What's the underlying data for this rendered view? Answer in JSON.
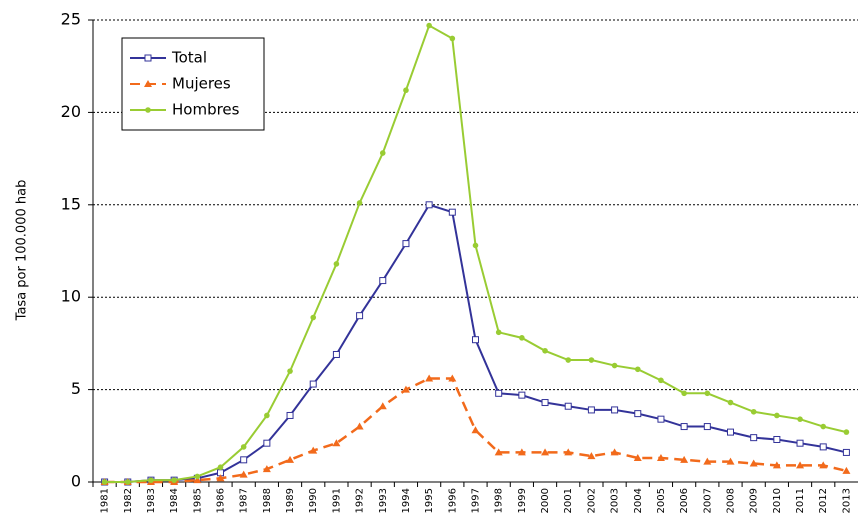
{
  "chart_data": {
    "type": "line",
    "y_label": "Tasa por 100.000 hab",
    "categories": [
      "1981",
      "1982",
      "1983",
      "1984",
      "1985",
      "1986",
      "1987",
      "1988",
      "1989",
      "1990",
      "1991",
      "1992",
      "1993",
      "1994",
      "1995",
      "1996",
      "1997",
      "1998",
      "1999",
      "2000",
      "2001",
      "2002",
      "2003",
      "2004",
      "2005",
      "2006",
      "2007",
      "2008",
      "2009",
      "2010",
      "2011",
      "2012",
      "2013"
    ],
    "series": [
      {
        "name": "Total",
        "color": "#333399",
        "marker": "square",
        "dash": false,
        "values": [
          0,
          0,
          0.1,
          0.1,
          0.2,
          0.5,
          1.2,
          2.1,
          3.6,
          5.3,
          6.9,
          9.0,
          10.9,
          12.9,
          15.0,
          14.6,
          7.7,
          4.8,
          4.7,
          4.3,
          4.1,
          3.9,
          3.9,
          3.7,
          3.4,
          3.0,
          3.0,
          2.7,
          2.4,
          2.3,
          2.1,
          1.9,
          1.6
        ]
      },
      {
        "name": "Mujeres",
        "color": "#f26a1b",
        "marker": "triangle",
        "dash": true,
        "values": [
          0,
          0,
          0,
          0,
          0.1,
          0.2,
          0.4,
          0.7,
          1.2,
          1.7,
          2.1,
          3.0,
          4.1,
          5.0,
          5.6,
          5.6,
          2.8,
          1.6,
          1.6,
          1.6,
          1.6,
          1.4,
          1.6,
          1.3,
          1.3,
          1.2,
          1.1,
          1.1,
          1.0,
          0.9,
          0.9,
          0.9,
          0.6
        ]
      },
      {
        "name": "Hombres",
        "color": "#99cc33",
        "marker": "circle",
        "dash": false,
        "values": [
          0,
          0,
          0.1,
          0.1,
          0.3,
          0.8,
          1.9,
          3.6,
          6.0,
          8.9,
          11.8,
          15.1,
          17.8,
          21.2,
          24.7,
          24.0,
          12.8,
          8.1,
          7.8,
          7.1,
          6.6,
          6.6,
          6.3,
          6.1,
          5.5,
          4.8,
          4.8,
          4.3,
          3.8,
          3.6,
          3.4,
          3.0,
          2.7
        ]
      }
    ],
    "ylim": [
      0,
      25
    ],
    "yticks": [
      0,
      5,
      10,
      15,
      20,
      25
    ],
    "grid": true,
    "legend": "upper left"
  }
}
